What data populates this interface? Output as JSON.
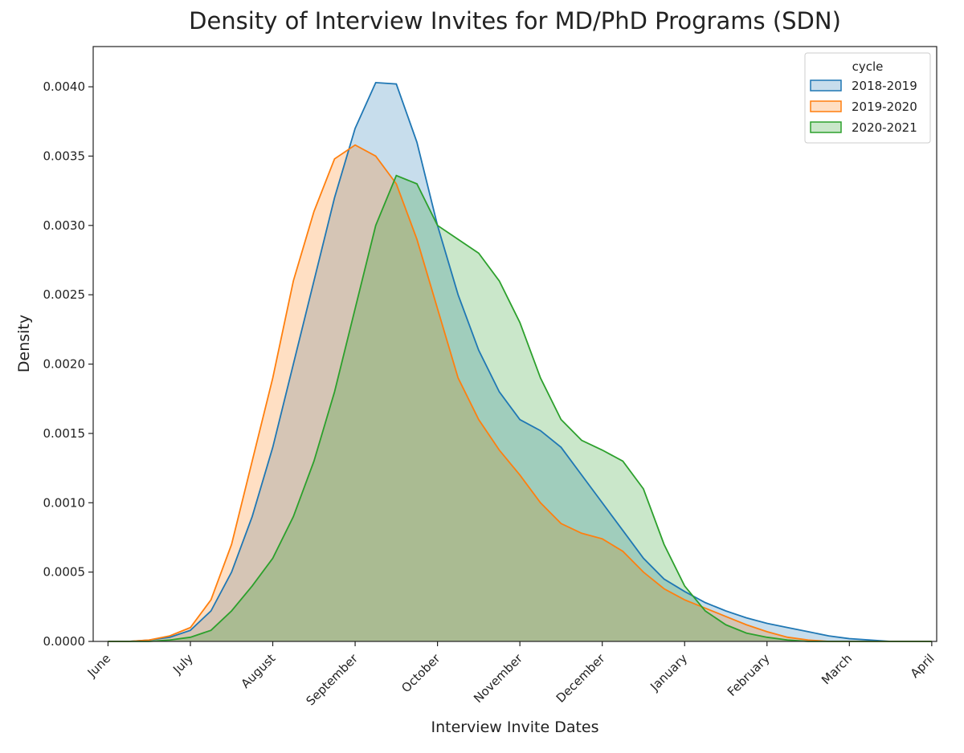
{
  "chart_data": {
    "type": "kde",
    "title": "Density of Interview Invites for MD/PhD Programs (SDN)",
    "x_label": "Interview Invite Dates",
    "y_label": "Density",
    "legend_title": "cycle",
    "legend_position": "upper right",
    "fill_opacity": 0.25,
    "xlim": [
      -0.18,
      10.06
    ],
    "ylim": [
      0,
      0.00429
    ],
    "xticks": [
      {
        "value": 0,
        "label": "June"
      },
      {
        "value": 1,
        "label": "July"
      },
      {
        "value": 2,
        "label": "August"
      },
      {
        "value": 3,
        "label": "September"
      },
      {
        "value": 4,
        "label": "October"
      },
      {
        "value": 5,
        "label": "November"
      },
      {
        "value": 6,
        "label": "December"
      },
      {
        "value": 7,
        "label": "January"
      },
      {
        "value": 8,
        "label": "February"
      },
      {
        "value": 9,
        "label": "March"
      },
      {
        "value": 10,
        "label": "April"
      }
    ],
    "yticks": [
      {
        "value": 0,
        "label": "0.0000"
      },
      {
        "value": 0.0005,
        "label": "0.0005"
      },
      {
        "value": 0.001,
        "label": "0.0010"
      },
      {
        "value": 0.0015,
        "label": "0.0015"
      },
      {
        "value": 0.002,
        "label": "0.0020"
      },
      {
        "value": 0.0025,
        "label": "0.0025"
      },
      {
        "value": 0.003,
        "label": "0.0030"
      },
      {
        "value": 0.0035,
        "label": "0.0035"
      },
      {
        "value": 0.004,
        "label": "0.0040"
      }
    ],
    "x": [
      0,
      0.25,
      0.5,
      0.75,
      1,
      1.25,
      1.5,
      1.75,
      2,
      2.25,
      2.5,
      2.75,
      3,
      3.25,
      3.5,
      3.75,
      4,
      4.25,
      4.5,
      4.75,
      5,
      5.25,
      5.5,
      5.75,
      6,
      6.25,
      6.5,
      6.75,
      7,
      7.25,
      7.5,
      7.75,
      8,
      8.25,
      8.5,
      8.75,
      9,
      9.25,
      9.5,
      9.75,
      10
    ],
    "series": [
      {
        "name": "2018-2019",
        "color": "#1f77b4",
        "values": [
          0,
          0,
          1e-05,
          3e-05,
          8e-05,
          0.00022,
          0.0005,
          0.0009,
          0.0014,
          0.002,
          0.0026,
          0.0032,
          0.0037,
          0.00403,
          0.00402,
          0.0036,
          0.003,
          0.0025,
          0.0021,
          0.0018,
          0.0016,
          0.00152,
          0.0014,
          0.0012,
          0.001,
          0.0008,
          0.0006,
          0.00045,
          0.00036,
          0.00028,
          0.00022,
          0.00017,
          0.00013,
          0.0001,
          7e-05,
          4e-05,
          2e-05,
          1e-05,
          0,
          0,
          0
        ]
      },
      {
        "name": "2019-2020",
        "color": "#ff7f0e",
        "values": [
          0,
          0,
          1e-05,
          4e-05,
          0.0001,
          0.0003,
          0.0007,
          0.0013,
          0.0019,
          0.0026,
          0.0031,
          0.00348,
          0.00358,
          0.0035,
          0.0033,
          0.0029,
          0.0024,
          0.0019,
          0.0016,
          0.00138,
          0.0012,
          0.001,
          0.00085,
          0.00078,
          0.00074,
          0.00065,
          0.0005,
          0.00038,
          0.0003,
          0.00024,
          0.00018,
          0.00012,
          7e-05,
          3e-05,
          1e-05,
          0,
          0,
          0,
          0,
          0,
          0
        ]
      },
      {
        "name": "2020-2021",
        "color": "#2ca02c",
        "values": [
          0,
          0,
          0,
          1e-05,
          3e-05,
          8e-05,
          0.00022,
          0.0004,
          0.0006,
          0.0009,
          0.0013,
          0.0018,
          0.0024,
          0.003,
          0.00336,
          0.0033,
          0.003,
          0.0029,
          0.0028,
          0.0026,
          0.0023,
          0.0019,
          0.0016,
          0.00145,
          0.00138,
          0.0013,
          0.0011,
          0.0007,
          0.0004,
          0.00022,
          0.00012,
          6e-05,
          3e-05,
          1e-05,
          0,
          0,
          0,
          0,
          0,
          0,
          0
        ]
      }
    ]
  }
}
